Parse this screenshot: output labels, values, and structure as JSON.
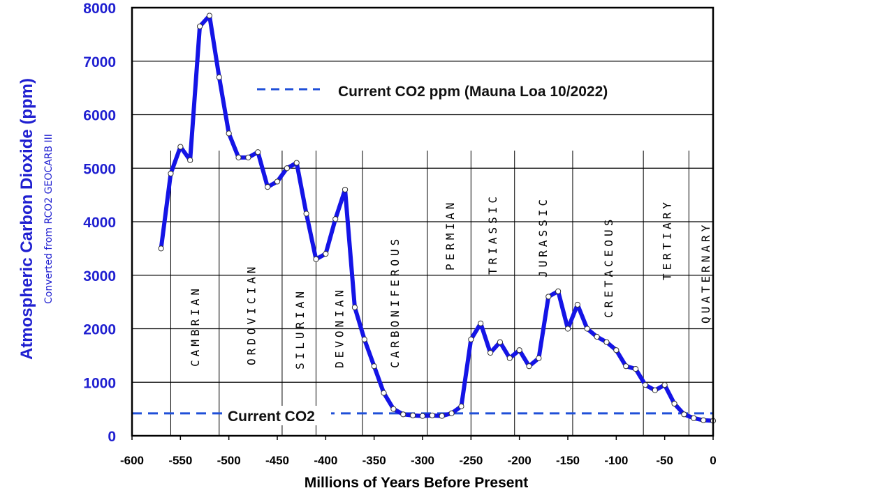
{
  "chart_data": {
    "type": "line",
    "title": "",
    "xlabel": "Millions of Years Before Present",
    "ylabel": "Atmospheric Carbon Dioxide (ppm)",
    "ylabel_sub": "Converted from RCO2 GEOCARB III",
    "xlim": [
      -600,
      0
    ],
    "ylim": [
      0,
      8000
    ],
    "grid": "horizontal",
    "x_ticks": [
      -600,
      -550,
      -500,
      -450,
      -400,
      -350,
      -300,
      -250,
      -200,
      -150,
      -100,
      -50,
      0
    ],
    "x_tick_labels": [
      "-600",
      "-550",
      "-500",
      "-450",
      "-400",
      "-350",
      "-300",
      "-250",
      "-200",
      "-150",
      "-100",
      "-50",
      "0"
    ],
    "y_ticks": [
      0,
      1000,
      2000,
      3000,
      4000,
      5000,
      6000,
      7000,
      8000
    ],
    "y_tick_labels": [
      "0",
      "1000",
      "2000",
      "3000",
      "4000",
      "5000",
      "6000",
      "7000",
      "8000"
    ],
    "series": [
      {
        "name": "CO2 (ppm)",
        "color": "#1414e6",
        "x": [
          -570,
          -560,
          -550,
          -540,
          -530,
          -520,
          -510,
          -500,
          -490,
          -480,
          -470,
          -460,
          -450,
          -440,
          -430,
          -420,
          -410,
          -400,
          -390,
          -380,
          -370,
          -360,
          -350,
          -340,
          -330,
          -320,
          -310,
          -300,
          -290,
          -280,
          -270,
          -260,
          -250,
          -240,
          -230,
          -220,
          -210,
          -200,
          -190,
          -180,
          -170,
          -160,
          -150,
          -140,
          -130,
          -120,
          -110,
          -100,
          -90,
          -80,
          -70,
          -60,
          -50,
          -40,
          -30,
          -20,
          -10,
          0
        ],
        "values": [
          3500,
          4900,
          5400,
          5150,
          7650,
          7850,
          6700,
          5650,
          5200,
          5200,
          5300,
          4650,
          4750,
          5000,
          5100,
          4150,
          3300,
          3400,
          4050,
          4600,
          2400,
          1800,
          1300,
          800,
          500,
          400,
          380,
          370,
          380,
          370,
          420,
          550,
          1800,
          2100,
          1550,
          1750,
          1450,
          1600,
          1300,
          1450,
          2600,
          2700,
          2000,
          2450,
          2000,
          1850,
          1750,
          1600,
          1300,
          1250,
          950,
          850,
          950,
          600,
          400,
          330,
          290,
          280
        ]
      },
      {
        "name": "Current CO2 ppm (Mauna Loa 10/2022)",
        "type": "hline",
        "color": "#1f4fd8",
        "y": 418
      }
    ],
    "legend": {
      "entries": [
        "Current CO2 ppm (Mauna Loa 10/2022)"
      ],
      "placement": "top-center"
    },
    "annotations": [
      {
        "text": "Current CO2",
        "x": -415,
        "y": 418
      }
    ],
    "periods": {
      "boundaries": [
        -560,
        -510,
        -445,
        -410,
        -362,
        -295,
        -250,
        -205,
        -145,
        -72,
        -25
      ],
      "labels": [
        {
          "name": "CAMBRIAN",
          "x": -535
        },
        {
          "name": "ORDOVICIAN",
          "x": -477
        },
        {
          "name": "SILURIAN",
          "x": -427
        },
        {
          "name": "DEVONIAN",
          "x": -386
        },
        {
          "name": "CARBONIFEROUS",
          "x": -329
        },
        {
          "name": "PERMIAN",
          "x": -272
        },
        {
          "name": "TRIASSIC",
          "x": -228
        },
        {
          "name": "JURASSIC",
          "x": -176
        },
        {
          "name": "CRETACEOUS",
          "x": -108
        },
        {
          "name": "TERTIARY",
          "x": -48
        },
        {
          "name": "QUATERNARY",
          "x": -8
        }
      ]
    }
  }
}
